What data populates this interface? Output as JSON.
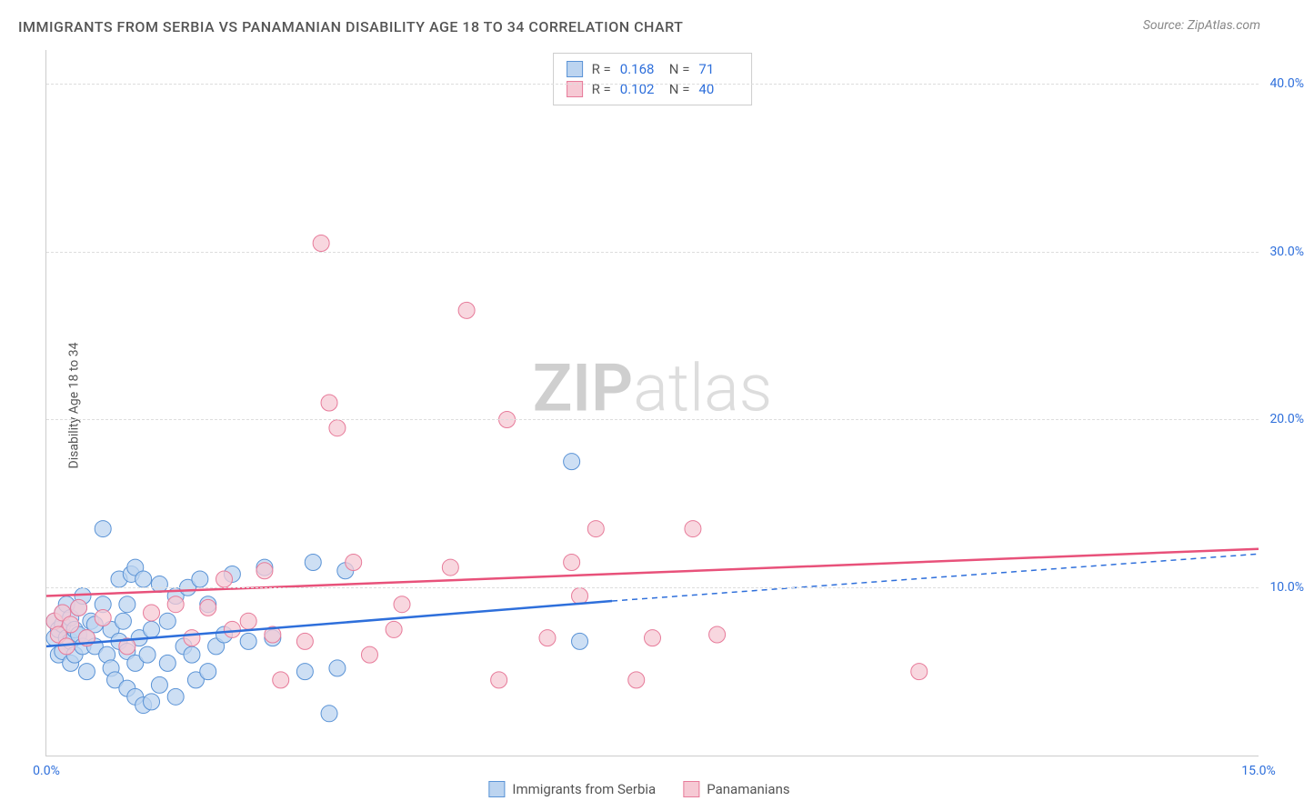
{
  "chart": {
    "type": "scatter",
    "title": "IMMIGRANTS FROM SERBIA VS PANAMANIAN DISABILITY AGE 18 TO 34 CORRELATION CHART",
    "source": "Source: ZipAtlas.com",
    "y_axis_label": "Disability Age 18 to 34",
    "watermark": {
      "bold": "ZIP",
      "light": "atlas"
    },
    "background_color": "#ffffff",
    "grid_color": "#dddddd",
    "axis_color": "#cccccc",
    "tick_color": "#2e6fdb",
    "title_fontsize": 16,
    "label_fontsize": 14,
    "xlim": [
      0,
      15
    ],
    "ylim": [
      0,
      42
    ],
    "x_ticks": [
      {
        "value": 0,
        "label": "0.0%"
      },
      {
        "value": 15,
        "label": "15.0%"
      }
    ],
    "y_ticks": [
      {
        "value": 10,
        "label": "10.0%"
      },
      {
        "value": 20,
        "label": "20.0%"
      },
      {
        "value": 30,
        "label": "30.0%"
      },
      {
        "value": 40,
        "label": "40.0%"
      }
    ],
    "series": [
      {
        "name": "Immigrants from Serbia",
        "R": "0.168",
        "N": "71",
        "marker_fill": "#bcd4f0",
        "marker_stroke": "#5a93d6",
        "marker_radius": 9,
        "line_color": "#2e6fdb",
        "line_width": 2.5,
        "regression": {
          "x1": 0,
          "y1": 6.5,
          "x2": 7.0,
          "y2": 9.2,
          "extend_x": 15,
          "extend_y": 12.0
        },
        "points": [
          [
            0.1,
            7.0
          ],
          [
            0.1,
            8.0
          ],
          [
            0.15,
            7.5
          ],
          [
            0.15,
            6.0
          ],
          [
            0.2,
            7.8
          ],
          [
            0.2,
            8.5
          ],
          [
            0.2,
            6.2
          ],
          [
            0.25,
            7.0
          ],
          [
            0.25,
            9.0
          ],
          [
            0.3,
            6.8
          ],
          [
            0.3,
            8.2
          ],
          [
            0.3,
            5.5
          ],
          [
            0.35,
            7.5
          ],
          [
            0.35,
            6.0
          ],
          [
            0.4,
            8.8
          ],
          [
            0.4,
            7.2
          ],
          [
            0.45,
            6.5
          ],
          [
            0.45,
            9.5
          ],
          [
            0.5,
            7.0
          ],
          [
            0.5,
            5.0
          ],
          [
            0.55,
            8.0
          ],
          [
            0.6,
            6.5
          ],
          [
            0.6,
            7.8
          ],
          [
            0.7,
            13.5
          ],
          [
            0.7,
            9.0
          ],
          [
            0.75,
            6.0
          ],
          [
            0.8,
            5.2
          ],
          [
            0.8,
            7.5
          ],
          [
            0.85,
            4.5
          ],
          [
            0.9,
            6.8
          ],
          [
            0.9,
            10.5
          ],
          [
            0.95,
            8.0
          ],
          [
            1.0,
            4.0
          ],
          [
            1.0,
            6.2
          ],
          [
            1.0,
            9.0
          ],
          [
            1.05,
            10.8
          ],
          [
            1.1,
            5.5
          ],
          [
            1.1,
            11.2
          ],
          [
            1.1,
            3.5
          ],
          [
            1.15,
            7.0
          ],
          [
            1.2,
            3.0
          ],
          [
            1.2,
            10.5
          ],
          [
            1.25,
            6.0
          ],
          [
            1.3,
            7.5
          ],
          [
            1.3,
            3.2
          ],
          [
            1.4,
            4.2
          ],
          [
            1.4,
            10.2
          ],
          [
            1.5,
            5.5
          ],
          [
            1.5,
            8.0
          ],
          [
            1.6,
            3.5
          ],
          [
            1.6,
            9.5
          ],
          [
            1.7,
            6.5
          ],
          [
            1.75,
            10.0
          ],
          [
            1.8,
            6.0
          ],
          [
            1.85,
            4.5
          ],
          [
            1.9,
            10.5
          ],
          [
            2.0,
            5.0
          ],
          [
            2.0,
            9.0
          ],
          [
            2.1,
            6.5
          ],
          [
            2.2,
            7.2
          ],
          [
            2.3,
            10.8
          ],
          [
            2.5,
            6.8
          ],
          [
            2.7,
            11.2
          ],
          [
            2.8,
            7.0
          ],
          [
            3.2,
            5.0
          ],
          [
            3.3,
            11.5
          ],
          [
            3.5,
            2.5
          ],
          [
            3.6,
            5.2
          ],
          [
            3.7,
            11.0
          ],
          [
            6.5,
            17.5
          ],
          [
            6.6,
            6.8
          ]
        ]
      },
      {
        "name": "Panamanians",
        "R": "0.102",
        "N": "40",
        "marker_fill": "#f6c9d4",
        "marker_stroke": "#e77b9a",
        "marker_radius": 9,
        "line_color": "#e8517a",
        "line_width": 2.5,
        "regression": {
          "x1": 0,
          "y1": 9.5,
          "x2": 15,
          "y2": 12.3,
          "extend_x": 15,
          "extend_y": 12.3
        },
        "points": [
          [
            0.1,
            8.0
          ],
          [
            0.15,
            7.2
          ],
          [
            0.2,
            8.5
          ],
          [
            0.25,
            6.5
          ],
          [
            0.3,
            7.8
          ],
          [
            0.4,
            8.8
          ],
          [
            0.5,
            7.0
          ],
          [
            0.7,
            8.2
          ],
          [
            1.0,
            6.5
          ],
          [
            1.3,
            8.5
          ],
          [
            1.6,
            9.0
          ],
          [
            1.8,
            7.0
          ],
          [
            2.0,
            8.8
          ],
          [
            2.2,
            10.5
          ],
          [
            2.3,
            7.5
          ],
          [
            2.5,
            8.0
          ],
          [
            2.7,
            11.0
          ],
          [
            2.8,
            7.2
          ],
          [
            2.9,
            4.5
          ],
          [
            3.2,
            6.8
          ],
          [
            3.4,
            30.5
          ],
          [
            3.5,
            21.0
          ],
          [
            3.6,
            19.5
          ],
          [
            3.8,
            11.5
          ],
          [
            4.0,
            6.0
          ],
          [
            4.3,
            7.5
          ],
          [
            4.4,
            9.0
          ],
          [
            5.0,
            11.2
          ],
          [
            5.2,
            26.5
          ],
          [
            5.6,
            4.5
          ],
          [
            5.7,
            20.0
          ],
          [
            6.2,
            7.0
          ],
          [
            6.5,
            11.5
          ],
          [
            6.6,
            9.5
          ],
          [
            6.8,
            13.5
          ],
          [
            7.3,
            4.5
          ],
          [
            7.5,
            7.0
          ],
          [
            8.0,
            13.5
          ],
          [
            8.3,
            7.2
          ],
          [
            10.8,
            5.0
          ]
        ]
      }
    ],
    "bottom_legend": [
      {
        "label": "Immigrants from Serbia",
        "fill": "#bcd4f0",
        "stroke": "#5a93d6"
      },
      {
        "label": "Panamanians",
        "fill": "#f6c9d4",
        "stroke": "#e77b9a"
      }
    ]
  }
}
